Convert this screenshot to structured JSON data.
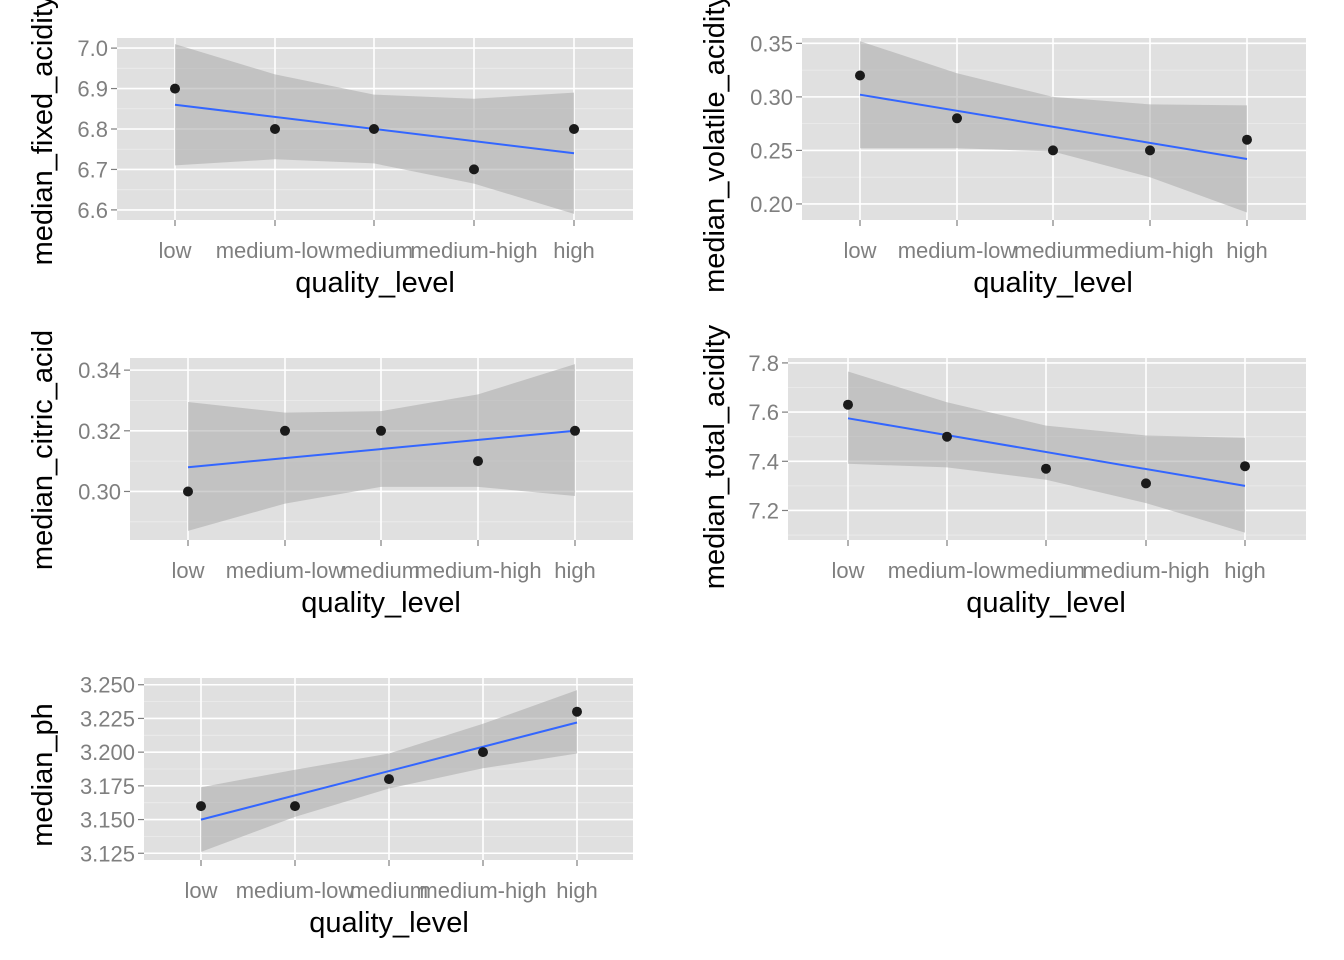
{
  "colors": {
    "panel_background": "#e0e0e0",
    "grid": "#ffffff",
    "ribbon": "#aaaaaa",
    "fit_line": "#3366ff",
    "points": "#1a1a1a",
    "tick_text": "#7f7f7f"
  },
  "chart_data": [
    {
      "type": "scatter",
      "id": "fixed",
      "xlabel": "quality_level",
      "ylabel": "median_fixed_acidity",
      "categories": [
        "low",
        "medium-low",
        "medium",
        "medium-high",
        "high"
      ],
      "values": [
        6.9,
        6.8,
        6.8,
        6.7,
        6.8
      ],
      "ylim": [
        6.575,
        7.025
      ],
      "yticks": [
        6.6,
        6.7,
        6.8,
        6.9,
        7.0
      ],
      "ytick_labels": [
        "6.6",
        "6.7",
        "6.8",
        "6.9",
        "7.0"
      ],
      "fit": {
        "start": 6.86,
        "end": 6.74
      },
      "ci_lower": [
        6.71,
        6.725,
        6.715,
        6.665,
        6.59
      ],
      "ci_upper": [
        7.01,
        6.935,
        6.885,
        6.875,
        6.89
      ],
      "grid": true
    },
    {
      "type": "scatter",
      "id": "volatile",
      "xlabel": "quality_level",
      "ylabel": "median_volatile_acidity",
      "categories": [
        "low",
        "medium-low",
        "medium",
        "medium-high",
        "high"
      ],
      "values": [
        0.32,
        0.28,
        0.25,
        0.25,
        0.26
      ],
      "ylim": [
        0.185,
        0.355
      ],
      "yticks": [
        0.2,
        0.25,
        0.3,
        0.35
      ],
      "ytick_labels": [
        "0.20",
        "0.25",
        "0.30",
        "0.35"
      ],
      "fit": {
        "start": 0.302,
        "end": 0.242
      },
      "ci_lower": [
        0.252,
        0.252,
        0.249,
        0.225,
        0.192
      ],
      "ci_upper": [
        0.352,
        0.322,
        0.3,
        0.293,
        0.292
      ],
      "grid": true
    },
    {
      "type": "scatter",
      "id": "citric",
      "xlabel": "quality_level",
      "ylabel": "median_citric_acid",
      "categories": [
        "low",
        "medium-low",
        "medium",
        "medium-high",
        "high"
      ],
      "values": [
        0.3,
        0.32,
        0.32,
        0.31,
        0.32
      ],
      "ylim": [
        0.284,
        0.344
      ],
      "yticks": [
        0.3,
        0.32,
        0.34
      ],
      "ytick_labels": [
        "0.30",
        "0.32",
        "0.34"
      ],
      "fit": {
        "start": 0.308,
        "end": 0.32
      },
      "ci_lower": [
        0.287,
        0.296,
        0.3015,
        0.3015,
        0.2985
      ],
      "ci_upper": [
        0.3295,
        0.326,
        0.3265,
        0.332,
        0.342
      ],
      "grid": true
    },
    {
      "type": "scatter",
      "id": "total",
      "xlabel": "quality_level",
      "ylabel": "median_total_acidity",
      "categories": [
        "low",
        "medium-low",
        "medium",
        "medium-high",
        "high"
      ],
      "values": [
        7.63,
        7.5,
        7.37,
        7.31,
        7.38
      ],
      "ylim": [
        7.08,
        7.82
      ],
      "yticks": [
        7.2,
        7.4,
        7.6,
        7.8
      ],
      "ytick_labels": [
        "7.2",
        "7.4",
        "7.6",
        "7.8"
      ],
      "fit": {
        "start": 7.575,
        "end": 7.3
      },
      "ci_lower": [
        7.39,
        7.375,
        7.325,
        7.23,
        7.11
      ],
      "ci_upper": [
        7.765,
        7.64,
        7.545,
        7.505,
        7.495
      ],
      "grid": true
    },
    {
      "type": "scatter",
      "id": "ph",
      "xlabel": "quality_level",
      "ylabel": "median_ph",
      "categories": [
        "low",
        "medium-low",
        "medium",
        "medium-high",
        "high"
      ],
      "values": [
        3.16,
        3.16,
        3.18,
        3.2,
        3.23
      ],
      "ylim": [
        3.12,
        3.255
      ],
      "yticks": [
        3.125,
        3.15,
        3.175,
        3.2,
        3.225,
        3.25
      ],
      "ytick_labels": [
        "3.125",
        "3.150",
        "3.175",
        "3.200",
        "3.225",
        "3.250"
      ],
      "fit": {
        "start": 3.15,
        "end": 3.222
      },
      "ci_lower": [
        3.126,
        3.152,
        3.173,
        3.188,
        3.199
      ],
      "ci_upper": [
        3.174,
        3.187,
        3.199,
        3.221,
        3.246
      ],
      "grid": true
    }
  ]
}
